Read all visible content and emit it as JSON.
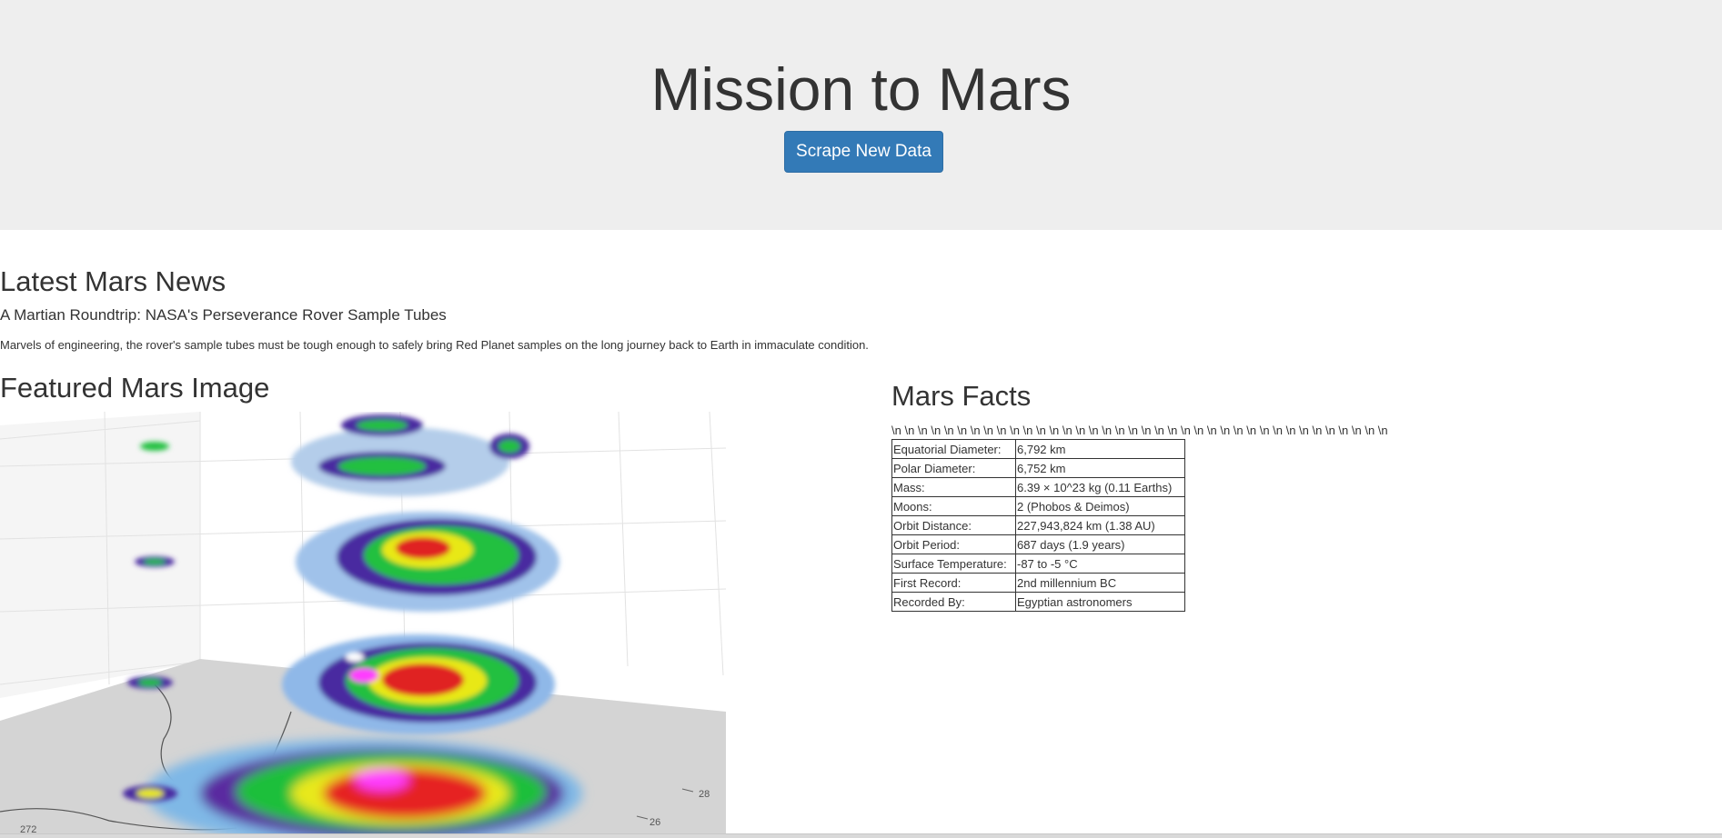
{
  "header": {
    "title": "Mission to Mars",
    "scrape_button": "Scrape New Data"
  },
  "news": {
    "heading": "Latest Mars News",
    "title": "A Martian Roundtrip: NASA's Perseverance Rover Sample Tubes",
    "paragraph": "Marvels of engineering, the rover's sample tubes must be tough enough to safely bring Red Planet samples on the long journey back to Earth in immaculate condition."
  },
  "featured": {
    "heading": "Featured Mars Image",
    "tick_labels": [
      "28",
      "26",
      "272"
    ]
  },
  "facts": {
    "heading": "Mars Facts",
    "stray_text": "\\n \\n \\n \\n \\n \\n \\n \\n \\n \\n \\n \\n \\n \\n \\n \\n \\n \\n \\n \\n \\n \\n \\n \\n \\n \\n \\n \\n \\n \\n \\n \\n \\n \\n \\n \\n \\n \\n",
    "rows": [
      {
        "label": "Equatorial Diameter:",
        "value": "6,792 km"
      },
      {
        "label": "Polar Diameter:",
        "value": "6,752 km"
      },
      {
        "label": "Mass:",
        "value": "6.39 × 10^23 kg (0.11 Earths)"
      },
      {
        "label": "Moons:",
        "value": "2 (Phobos & Deimos)"
      },
      {
        "label": "Orbit Distance:",
        "value": "227,943,824 km (1.38 AU)"
      },
      {
        "label": "Orbit Period:",
        "value": "687 days (1.9 years)"
      },
      {
        "label": "Surface Temperature:",
        "value": "-87 to -5 °C"
      },
      {
        "label": "First Record:",
        "value": "2nd millennium BC"
      },
      {
        "label": "Recorded By:",
        "value": "Egyptian astronomers"
      }
    ]
  }
}
